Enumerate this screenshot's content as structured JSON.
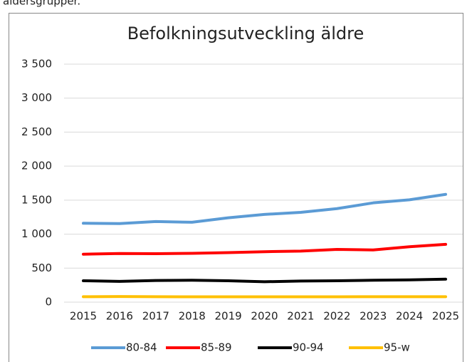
{
  "page_text": "åldersgrupper.",
  "chart_data": {
    "type": "line",
    "title": "Befolkningsutveckling äldre",
    "categories": [
      "2015",
      "2016",
      "2017",
      "2018",
      "2019",
      "2020",
      "2021",
      "2022",
      "2023",
      "2024",
      "2025"
    ],
    "series": [
      {
        "name": "80-84",
        "color": "#5b9bd5",
        "values": [
          1160,
          1155,
          1185,
          1175,
          1240,
          1290,
          1320,
          1375,
          1460,
          1505,
          1585
        ]
      },
      {
        "name": "85-89",
        "color": "#ff0000",
        "values": [
          705,
          715,
          712,
          718,
          728,
          742,
          750,
          775,
          768,
          815,
          850
        ]
      },
      {
        "name": "90-94",
        "color": "#000000",
        "values": [
          315,
          305,
          318,
          322,
          315,
          300,
          310,
          315,
          322,
          328,
          338
        ]
      },
      {
        "name": "95-w",
        "color": "#ffc000",
        "values": [
          80,
          82,
          80,
          78,
          78,
          78,
          78,
          78,
          80,
          80,
          80
        ]
      }
    ],
    "ylim": [
      0,
      3500
    ],
    "yticks": [
      0,
      500,
      {
        "value": 1000,
        "label": "1 000"
      },
      {
        "value": 1500,
        "label": "1 500"
      },
      {
        "value": 2000,
        "label": "2 000"
      },
      {
        "value": 2500,
        "label": "2 500"
      },
      {
        "value": 3000,
        "label": "3 000"
      },
      {
        "value": 3500,
        "label": "3 500"
      }
    ],
    "grid": true,
    "legend": "bottom"
  }
}
